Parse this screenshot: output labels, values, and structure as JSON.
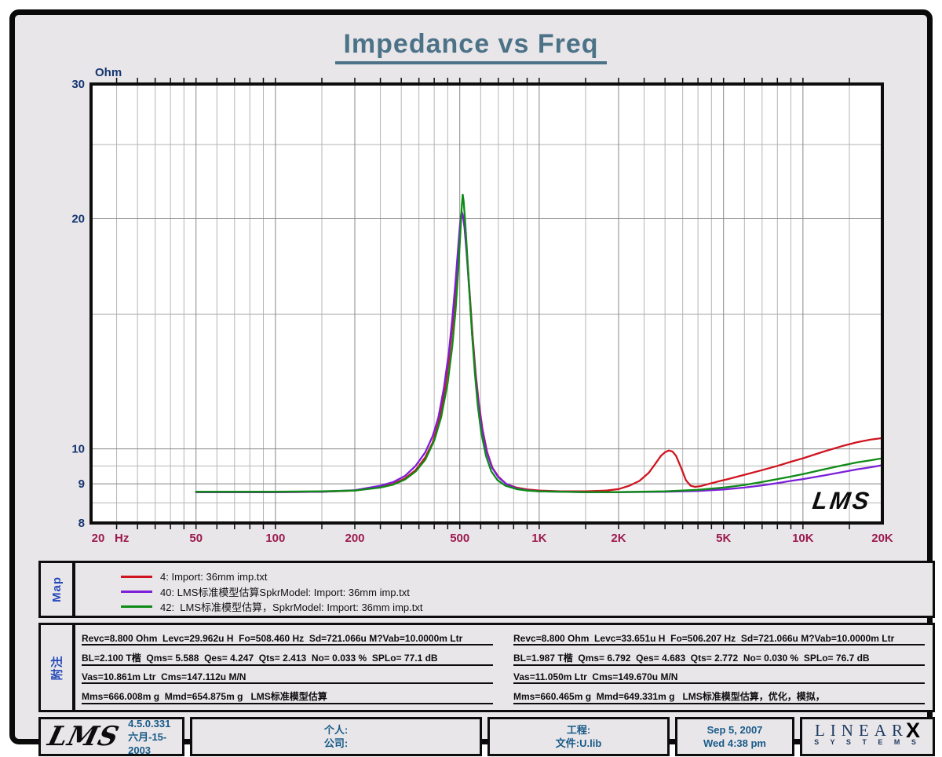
{
  "page": {
    "title": "Impedance vs Freq"
  },
  "chart_data": {
    "type": "line",
    "title": "Impedance vs Freq",
    "xlabel": "Hz",
    "ylabel": "Ohm",
    "x_scale": "log",
    "y_scale": "log",
    "xlim": [
      20,
      20000
    ],
    "ylim": [
      8,
      30
    ],
    "grid": "on",
    "x_unit_label": "Hz",
    "x_ticks": [
      {
        "f": 20,
        "label": "20"
      },
      {
        "f": 50,
        "label": "50"
      },
      {
        "f": 100,
        "label": "100"
      },
      {
        "f": 200,
        "label": "200"
      },
      {
        "f": 500,
        "label": "500"
      },
      {
        "f": 1000,
        "label": "1K"
      },
      {
        "f": 2000,
        "label": "2K"
      },
      {
        "f": 5000,
        "label": "5K"
      },
      {
        "f": 10000,
        "label": "10K"
      },
      {
        "f": 20000,
        "label": "20K"
      }
    ],
    "x_gridlines_major": [
      50,
      100,
      200,
      500,
      1000,
      2000,
      5000,
      10000
    ],
    "x_gridlines_minor": [
      25,
      30,
      35,
      40,
      45,
      60,
      70,
      80,
      90,
      150,
      250,
      300,
      350,
      400,
      450,
      600,
      700,
      800,
      900,
      1500,
      2500,
      3000,
      3500,
      4000,
      4500,
      6000,
      7000,
      8000,
      9000,
      15000
    ],
    "y_ticks": [
      {
        "v": 30,
        "label": "30"
      },
      {
        "v": 20,
        "label": "20"
      },
      {
        "v": 10,
        "label": "10"
      },
      {
        "v": 9,
        "label": "9"
      },
      {
        "v": 8,
        "label": "8"
      }
    ],
    "y_gridlines_major": [
      9,
      10,
      20
    ],
    "y_gridlines_minor": [
      8.5,
      9.5,
      15,
      25
    ],
    "watermark": "LMS",
    "legend_position": "bottom-panel",
    "series": [
      {
        "name": "4: Import: 36mm imp.txt",
        "color": "#d01520",
        "points": [
          [
            50,
            8.78
          ],
          [
            70,
            8.78
          ],
          [
            100,
            8.78
          ],
          [
            150,
            8.79
          ],
          [
            200,
            8.82
          ],
          [
            250,
            8.92
          ],
          [
            280,
            9.0
          ],
          [
            310,
            9.15
          ],
          [
            340,
            9.38
          ],
          [
            370,
            9.75
          ],
          [
            395,
            10.2
          ],
          [
            415,
            10.8
          ],
          [
            435,
            11.7
          ],
          [
            455,
            13.1
          ],
          [
            470,
            14.6
          ],
          [
            482,
            16.2
          ],
          [
            492,
            17.8
          ],
          [
            500,
            19.2
          ],
          [
            506,
            20.0
          ],
          [
            510,
            20.2
          ],
          [
            515,
            20.1
          ],
          [
            522,
            19.4
          ],
          [
            532,
            18.0
          ],
          [
            545,
            16.0
          ],
          [
            560,
            14.0
          ],
          [
            575,
            12.5
          ],
          [
            590,
            11.5
          ],
          [
            610,
            10.6
          ],
          [
            635,
            9.9
          ],
          [
            665,
            9.45
          ],
          [
            700,
            9.2
          ],
          [
            750,
            9.0
          ],
          [
            820,
            8.9
          ],
          [
            900,
            8.85
          ],
          [
            1000,
            8.82
          ],
          [
            1200,
            8.8
          ],
          [
            1500,
            8.8
          ],
          [
            1800,
            8.82
          ],
          [
            2000,
            8.86
          ],
          [
            2200,
            8.95
          ],
          [
            2400,
            9.08
          ],
          [
            2600,
            9.3
          ],
          [
            2750,
            9.55
          ],
          [
            2900,
            9.8
          ],
          [
            3000,
            9.9
          ],
          [
            3100,
            9.95
          ],
          [
            3200,
            9.92
          ],
          [
            3300,
            9.8
          ],
          [
            3450,
            9.45
          ],
          [
            3600,
            9.1
          ],
          [
            3750,
            8.95
          ],
          [
            3900,
            8.92
          ],
          [
            4100,
            8.94
          ],
          [
            4400,
            9.0
          ],
          [
            4800,
            9.07
          ],
          [
            5200,
            9.13
          ],
          [
            6000,
            9.25
          ],
          [
            7000,
            9.38
          ],
          [
            8000,
            9.5
          ],
          [
            9000,
            9.62
          ],
          [
            10000,
            9.72
          ],
          [
            12000,
            9.92
          ],
          [
            14000,
            10.08
          ],
          [
            16000,
            10.2
          ],
          [
            18000,
            10.28
          ],
          [
            20000,
            10.33
          ]
        ]
      },
      {
        "name": "40: LMS标准模型估算SpkrModel: Import: 36mm imp.txt",
        "color": "#7b1fd8",
        "points": [
          [
            50,
            8.78
          ],
          [
            100,
            8.78
          ],
          [
            150,
            8.79
          ],
          [
            200,
            8.83
          ],
          [
            250,
            8.95
          ],
          [
            280,
            9.05
          ],
          [
            310,
            9.22
          ],
          [
            340,
            9.5
          ],
          [
            370,
            9.9
          ],
          [
            395,
            10.4
          ],
          [
            415,
            11.0
          ],
          [
            435,
            12.0
          ],
          [
            455,
            13.4
          ],
          [
            470,
            15.0
          ],
          [
            482,
            16.6
          ],
          [
            492,
            18.2
          ],
          [
            500,
            19.5
          ],
          [
            505,
            20.2
          ],
          [
            509,
            20.4
          ],
          [
            514,
            20.2
          ],
          [
            521,
            19.5
          ],
          [
            531,
            18.0
          ],
          [
            544,
            16.0
          ],
          [
            558,
            14.0
          ],
          [
            572,
            12.6
          ],
          [
            588,
            11.5
          ],
          [
            608,
            10.6
          ],
          [
            633,
            9.9
          ],
          [
            663,
            9.45
          ],
          [
            700,
            9.18
          ],
          [
            750,
            9.0
          ],
          [
            820,
            8.88
          ],
          [
            900,
            8.83
          ],
          [
            1000,
            8.8
          ],
          [
            1500,
            8.78
          ],
          [
            2000,
            8.78
          ],
          [
            3000,
            8.79
          ],
          [
            4000,
            8.81
          ],
          [
            5000,
            8.85
          ],
          [
            6000,
            8.9
          ],
          [
            7000,
            8.96
          ],
          [
            8000,
            9.02
          ],
          [
            9000,
            9.08
          ],
          [
            10000,
            9.13
          ],
          [
            12000,
            9.23
          ],
          [
            14000,
            9.32
          ],
          [
            16000,
            9.4
          ],
          [
            18000,
            9.46
          ],
          [
            20000,
            9.52
          ]
        ]
      },
      {
        "name": "42:  LMS标准模型估算，SpkrModel: Import: 36mm imp.txt",
        "color": "#0e8b16",
        "points": [
          [
            50,
            8.79
          ],
          [
            100,
            8.79
          ],
          [
            150,
            8.8
          ],
          [
            200,
            8.82
          ],
          [
            250,
            8.9
          ],
          [
            280,
            8.98
          ],
          [
            310,
            9.12
          ],
          [
            340,
            9.34
          ],
          [
            370,
            9.68
          ],
          [
            400,
            10.25
          ],
          [
            425,
            11.0
          ],
          [
            450,
            12.2
          ],
          [
            468,
            13.6
          ],
          [
            482,
            15.2
          ],
          [
            494,
            17.2
          ],
          [
            503,
            19.3
          ],
          [
            509,
            20.8
          ],
          [
            513,
            21.5
          ],
          [
            517,
            21.1
          ],
          [
            523,
            20.0
          ],
          [
            532,
            18.2
          ],
          [
            543,
            16.2
          ],
          [
            556,
            14.2
          ],
          [
            570,
            12.6
          ],
          [
            585,
            11.4
          ],
          [
            603,
            10.5
          ],
          [
            628,
            9.8
          ],
          [
            658,
            9.35
          ],
          [
            695,
            9.1
          ],
          [
            745,
            8.95
          ],
          [
            820,
            8.86
          ],
          [
            900,
            8.82
          ],
          [
            1000,
            8.8
          ],
          [
            1500,
            8.78
          ],
          [
            2000,
            8.78
          ],
          [
            3000,
            8.8
          ],
          [
            4000,
            8.84
          ],
          [
            5000,
            8.9
          ],
          [
            6000,
            8.97
          ],
          [
            7000,
            9.05
          ],
          [
            8000,
            9.13
          ],
          [
            9000,
            9.2
          ],
          [
            10000,
            9.27
          ],
          [
            12000,
            9.4
          ],
          [
            14000,
            9.51
          ],
          [
            16000,
            9.6
          ],
          [
            18000,
            9.66
          ],
          [
            20000,
            9.72
          ]
        ]
      }
    ]
  },
  "legend_panel": {
    "label": "Map"
  },
  "notes_panel": {
    "label": "附注",
    "left": [
      "Revc=8.800 Ohm  Levc=29.962u H  Fo=508.460 Hz  Sd=721.066u M?Vab=10.0000m Ltr",
      "BL=2.100 T楷  Qms= 5.588  Qes= 4.247  Qts= 2.413  No= 0.033 %  SPLo= 77.1 dB",
      "Vas=10.861m Ltr  Cms=147.112u M/N",
      "Mms=666.008m g  Mmd=654.875m g   LMS标准模型估算"
    ],
    "right": [
      "Revc=8.800 Ohm  Levc=33.651u H  Fo=506.207 Hz  Sd=721.066u M?Vab=10.0000m Ltr",
      "BL=1.987 T楷  Qms= 6.792  Qes= 4.683  Qts= 2.772  No= 0.030 %  SPLo= 76.7 dB",
      "Vas=11.050m Ltr  Cms=149.670u M/N",
      "Mms=660.465m g  Mmd=649.331m g   LMS标准模型估算，优化，模拟，"
    ]
  },
  "footer": {
    "logo": "LMS",
    "version": "4.5.0.331",
    "build_date": "六月-15-2003",
    "personal": "个人:",
    "company": "公司:",
    "project": "工程:",
    "file": "文件:U.lib",
    "date": "Sep  5, 2007",
    "time": "Wed  4:38 pm",
    "brand_wordmark": "LINEAR",
    "brand_x": "X",
    "brand_systems": "S Y S T E M S"
  },
  "colors": {
    "background": "#e9e6ea",
    "plot_bg": "#ffffff",
    "title": "#4c7287",
    "y_axis_label": "#14356f",
    "x_axis_label": "#9b1b4e",
    "panel_label": "#2448b8",
    "footer_text": "#175a87",
    "grid_minor": "#b5b5b5",
    "grid_major": "#878787",
    "border": "#0d0d0d"
  }
}
